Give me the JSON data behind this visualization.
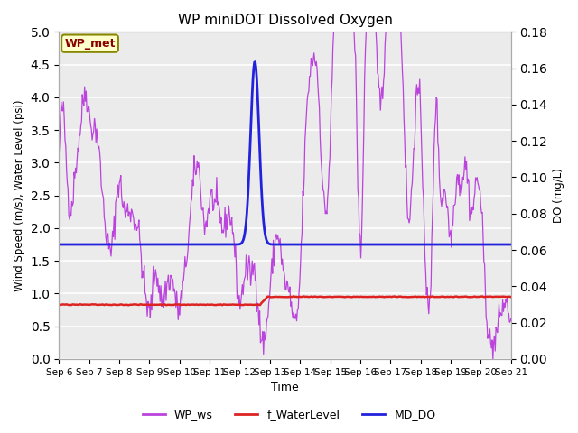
{
  "title": "WP miniDOT Dissolved Oxygen",
  "xlabel": "Time",
  "ylabel_left": "Wind Speed (m/s), Water Level (psi)",
  "ylabel_right": "DO (mg/L)",
  "ylim_left": [
    0.0,
    5.0
  ],
  "ylim_right": [
    0.0,
    0.18
  ],
  "yticks_left": [
    0.0,
    0.5,
    1.0,
    1.5,
    2.0,
    2.5,
    3.0,
    3.5,
    4.0,
    4.5,
    5.0
  ],
  "yticks_right": [
    0.0,
    0.02,
    0.04,
    0.06,
    0.08,
    0.1,
    0.12,
    0.14,
    0.16,
    0.18
  ],
  "background_color": "#ebebeb",
  "figure_background": "#ffffff",
  "legend_labels": [
    "WP_ws",
    "f_WaterLevel",
    "MD_DO"
  ],
  "legend_colors": [
    "#bb44dd",
    "#dd2222",
    "#2222dd"
  ],
  "wp_met_box_facecolor": "#ffffcc",
  "wp_met_text_color": "#880000",
  "wp_met_border_color": "#888800",
  "ws_color": "#bb44dd",
  "water_level_color": "#dd2222",
  "do_color": "#2222dd",
  "x_tick_labels": [
    "Sep 6",
    "Sep 7",
    "Sep 8",
    "Sep 9",
    "Sep 10",
    "Sep 11",
    "Sep 12",
    "Sep 13",
    "Sep 14",
    "Sep 15",
    "Sep 16",
    "Sep 17",
    "Sep 18",
    "Sep 19",
    "Sep 20",
    "Sep 21"
  ],
  "grid_color": "#ffffff",
  "ws_linewidth": 0.9,
  "wl_linewidth": 1.8,
  "do_linewidth": 2.0
}
